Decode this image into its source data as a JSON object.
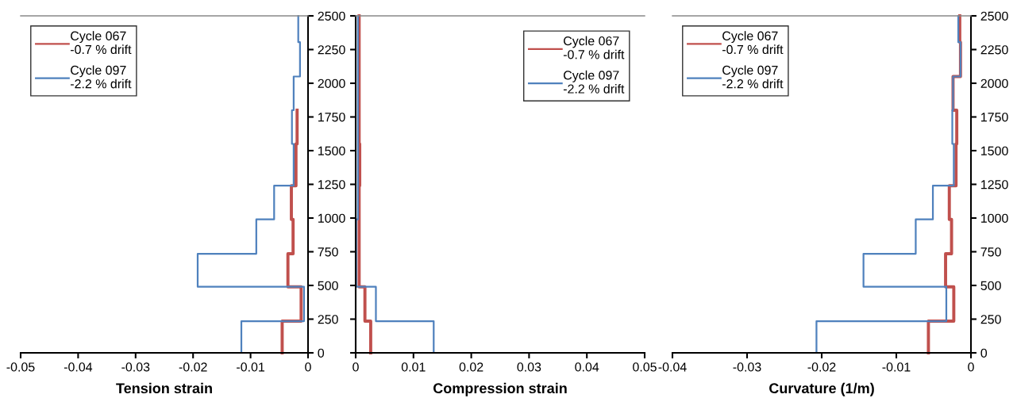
{
  "chart_data": [
    {
      "type": "line",
      "xlabel": "Tension strain",
      "xlim": [
        -0.05,
        0
      ],
      "xticks": [
        -0.05,
        -0.04,
        -0.03,
        -0.02,
        -0.01,
        0
      ],
      "ylim": [
        0,
        2500
      ],
      "yticks": [
        0,
        250,
        500,
        750,
        1000,
        1250,
        1500,
        1750,
        2000,
        2250,
        2500
      ],
      "legend": "top left",
      "grid": false,
      "marker": "none",
      "line_style": "solid",
      "series": [
        {
          "name": "Cycle 067\n-0.7 % drift",
          "color": "#c0504d",
          "x": [
            -0.0045,
            -0.0045,
            -0.0012,
            -0.0012,
            -0.0035,
            -0.0035,
            -0.0026,
            -0.0026,
            -0.0029,
            -0.0029,
            -0.0021,
            -0.0021,
            -0.0019,
            -0.0019
          ],
          "values": [
            0,
            235,
            235,
            490,
            490,
            735,
            735,
            990,
            990,
            1240,
            1240,
            1550,
            1550,
            1800
          ]
        },
        {
          "name": "Cycle 097\n-2.2 % drift",
          "color": "#4f81bd",
          "x": [
            -0.0116,
            -0.0116,
            -0.0007,
            -0.0007,
            -0.0192,
            -0.0192,
            -0.009,
            -0.009,
            -0.0059,
            -0.0059,
            -0.0025,
            -0.0025,
            -0.0028,
            -0.0028,
            -0.0025,
            -0.0025,
            -0.0014,
            -0.0014,
            -0.0017,
            -0.0017
          ],
          "values": [
            0,
            235,
            235,
            490,
            490,
            735,
            735,
            990,
            990,
            1240,
            1240,
            1550,
            1550,
            1800,
            1800,
            2050,
            2050,
            2305,
            2305,
            2500
          ]
        }
      ]
    },
    {
      "type": "line",
      "xlabel": "Compression strain",
      "xlim": [
        0,
        0.05
      ],
      "xticks": [
        0,
        0.01,
        0.02,
        0.03,
        0.04,
        0.05
      ],
      "ylim": [
        0,
        2500
      ],
      "yticks": [
        0,
        250,
        500,
        750,
        1000,
        1250,
        1500,
        1750,
        2000,
        2250,
        2500
      ],
      "tick_labels": "x",
      "legend": "top right",
      "grid": false,
      "marker": "none",
      "line_style": "solid",
      "series": [
        {
          "name": "Cycle 067\n-0.7 % drift",
          "color": "#c0504d",
          "x": [
            0.0026,
            0.0026,
            0.0016,
            0.0016,
            0.0006,
            0.0006,
            0.0007,
            0.0007,
            0.0006,
            0.0006
          ],
          "values": [
            0,
            235,
            235,
            490,
            490,
            1240,
            1240,
            1550,
            1550,
            2500
          ]
        },
        {
          "name": "Cycle 097\n-2.2 % drift",
          "color": "#4f81bd",
          "x": [
            0.0135,
            0.0135,
            0.0035,
            0.0035,
            0.0001,
            0.0001,
            0.0004,
            0.0004
          ],
          "values": [
            0,
            235,
            235,
            490,
            490,
            990,
            990,
            2500
          ]
        }
      ]
    },
    {
      "type": "line",
      "xlabel": "Curvature (1/m)",
      "xlim": [
        -0.04,
        0
      ],
      "xticks": [
        -0.04,
        -0.03,
        -0.02,
        -0.01,
        0
      ],
      "ylim": [
        0,
        2500
      ],
      "yticks": [
        0,
        250,
        500,
        750,
        1000,
        1250,
        1500,
        1750,
        2000,
        2250,
        2500
      ],
      "legend": "top left",
      "grid": false,
      "marker": "none",
      "line_style": "solid",
      "series": [
        {
          "name": "Cycle 067\n-0.7 % drift",
          "color": "#c0504d",
          "x": [
            -0.0057,
            -0.0057,
            -0.0023,
            -0.0023,
            -0.0034,
            -0.0034,
            -0.0026,
            -0.0026,
            -0.0029,
            -0.0029,
            -0.002,
            -0.002,
            -0.0019,
            -0.0019,
            -0.0024,
            -0.0024,
            -0.0014,
            -0.0014,
            -0.0015,
            -0.0015
          ],
          "values": [
            0,
            235,
            235,
            490,
            490,
            735,
            735,
            990,
            990,
            1240,
            1240,
            1550,
            1550,
            1800,
            1800,
            2050,
            2050,
            2305,
            2305,
            2500
          ]
        },
        {
          "name": "Cycle 097\n-2.2 % drift",
          "color": "#4f81bd",
          "x": [
            -0.0207,
            -0.0207,
            -0.0033,
            -0.0033,
            -0.0144,
            -0.0144,
            -0.0074,
            -0.0074,
            -0.0051,
            -0.0051,
            -0.0023,
            -0.0023,
            -0.0025,
            -0.0025,
            -0.0024,
            -0.0024,
            -0.0014,
            -0.0014,
            -0.0017,
            -0.0017
          ],
          "values": [
            0,
            235,
            235,
            490,
            490,
            735,
            735,
            990,
            990,
            1240,
            1240,
            1550,
            1550,
            1800,
            1800,
            2050,
            2050,
            2305,
            2305,
            2500
          ]
        }
      ]
    }
  ]
}
